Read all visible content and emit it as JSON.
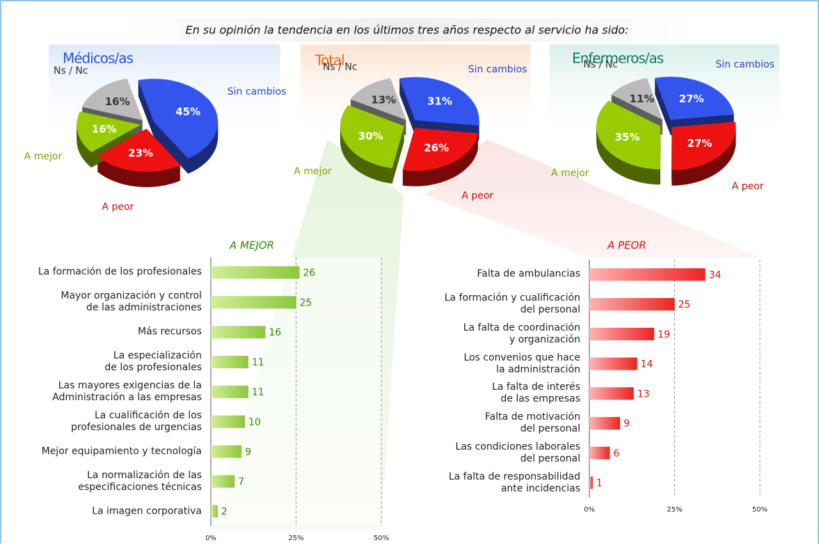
{
  "title": "En su opinión la tendencia en los últimos tres años respecto al servicio ha sido:",
  "chart_data": [
    {
      "type": "pie",
      "title": "Médicos/as",
      "title_color": "#2255dd",
      "categories": [
        "Sin cambios",
        "A peor",
        "A mejor",
        "Ns / Nc"
      ],
      "values": [
        45,
        23,
        16,
        16
      ],
      "value_labels": [
        "45%",
        "23%",
        "16%",
        "16%"
      ],
      "colors": [
        "#3355ee",
        "#ee1111",
        "#99cc00",
        "#bbbbbb"
      ]
    },
    {
      "type": "pie",
      "title": "Total",
      "title_color": "#ee6611",
      "categories": [
        "Sin cambios",
        "A peor",
        "A mejor",
        "Ns / Nc"
      ],
      "values": [
        31,
        26,
        30,
        13
      ],
      "value_labels": [
        "31%",
        "26%",
        "30%",
        "13%"
      ],
      "colors": [
        "#3355ee",
        "#ee1111",
        "#99cc00",
        "#bbbbbb"
      ]
    },
    {
      "type": "pie",
      "title": "Enfermeros/as",
      "title_color": "#117766",
      "categories": [
        "Sin cambios",
        "A peor",
        "A mejor",
        "Ns / Nc"
      ],
      "values": [
        27,
        27,
        35,
        11
      ],
      "value_labels": [
        "27%",
        "27%",
        "35%",
        "11%"
      ],
      "colors": [
        "#3355ee",
        "#ee1111",
        "#99cc00",
        "#bbbbbb"
      ]
    },
    {
      "type": "bar",
      "orientation": "horizontal",
      "title": "A MEJOR",
      "color": "#8cc63f",
      "label_color": "#338800",
      "categories": [
        "La formación de los profesionales",
        "Mayor organización y control\nde las administraciones",
        "Más recursos",
        "La especialización\nde los profesionales",
        "Las mayores exigencias de la\nAdministración a las empresas",
        "La cualificación de los\nprofesionales de urgencias",
        "Mejor equipamiento y tecnología",
        "La normalización de las\nespecificaciones técnicas",
        "La imagen corporativa"
      ],
      "values": [
        26,
        25,
        16,
        11,
        11,
        10,
        9,
        7,
        2
      ],
      "xlim": [
        0,
        50
      ],
      "xticks": [
        {
          "value": 0,
          "label": "0%"
        },
        {
          "value": 25,
          "label": "25%"
        },
        {
          "value": 50,
          "label": "50%"
        }
      ],
      "grid": true
    },
    {
      "type": "bar",
      "orientation": "horizontal",
      "title": "A PEOR",
      "color": "#ee2222",
      "label_color": "#dd1111",
      "categories": [
        "Falta de ambulancias",
        "La formación y cualificación\ndel personal",
        "La falta de coordinación\ny organización",
        "Los convenios que hace\nla administración",
        "La falta de interés\nde las empresas",
        "Falta de motivación\ndel personal",
        "Las condiciones laborales\ndel personal",
        "La falta de responsabilidad\nante incidencias"
      ],
      "values": [
        34,
        25,
        19,
        14,
        13,
        9,
        6,
        1
      ],
      "xlim": [
        0,
        50
      ],
      "xticks": [
        {
          "value": 0,
          "label": "0%"
        },
        {
          "value": 25,
          "label": "25%"
        },
        {
          "value": 50,
          "label": "50%"
        }
      ],
      "grid": true
    }
  ]
}
